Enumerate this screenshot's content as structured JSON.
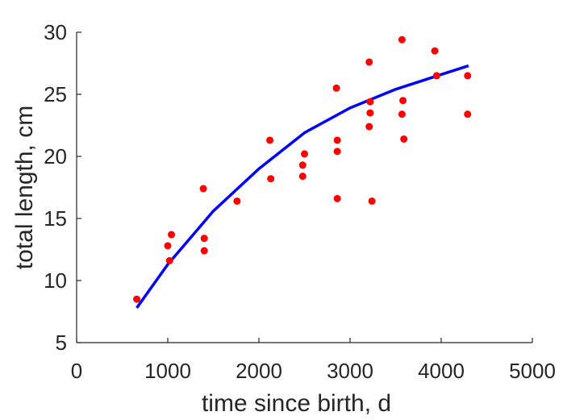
{
  "chart_data": {
    "type": "scatter",
    "title": "",
    "xlabel": "time since birth, d",
    "ylabel": "total length, cm",
    "xlim": [
      0,
      5000
    ],
    "ylim": [
      5,
      30
    ],
    "xticks": [
      "0",
      "1000",
      "2000",
      "3000",
      "4000",
      "5000"
    ],
    "yticks": [
      "5",
      "10",
      "15",
      "20",
      "25",
      "30"
    ],
    "grid": false,
    "legend": "none",
    "series": [
      {
        "type": "scatter",
        "color": "#ff0000",
        "points": [
          {
            "x": 660,
            "y": 8.5
          },
          {
            "x": 1000,
            "y": 12.8
          },
          {
            "x": 1020,
            "y": 11.6
          },
          {
            "x": 1040,
            "y": 13.7
          },
          {
            "x": 1390,
            "y": 17.4
          },
          {
            "x": 1400,
            "y": 13.4
          },
          {
            "x": 1400,
            "y": 12.4
          },
          {
            "x": 1760,
            "y": 16.4
          },
          {
            "x": 2120,
            "y": 21.3
          },
          {
            "x": 2130,
            "y": 18.2
          },
          {
            "x": 2480,
            "y": 19.3
          },
          {
            "x": 2480,
            "y": 18.4
          },
          {
            "x": 2500,
            "y": 20.2
          },
          {
            "x": 2850,
            "y": 25.5
          },
          {
            "x": 2860,
            "y": 21.3
          },
          {
            "x": 2860,
            "y": 20.4
          },
          {
            "x": 2860,
            "y": 16.6
          },
          {
            "x": 3210,
            "y": 27.6
          },
          {
            "x": 3220,
            "y": 24.4
          },
          {
            "x": 3220,
            "y": 23.5
          },
          {
            "x": 3210,
            "y": 22.4
          },
          {
            "x": 3240,
            "y": 16.4
          },
          {
            "x": 3570,
            "y": 29.4
          },
          {
            "x": 3580,
            "y": 24.5
          },
          {
            "x": 3570,
            "y": 23.4
          },
          {
            "x": 3590,
            "y": 21.4
          },
          {
            "x": 3930,
            "y": 28.5
          },
          {
            "x": 3950,
            "y": 26.5
          },
          {
            "x": 4290,
            "y": 26.5
          },
          {
            "x": 4290,
            "y": 23.4
          }
        ]
      },
      {
        "type": "line",
        "color": "#0000ff",
        "points": [
          {
            "x": 660,
            "y": 7.8
          },
          {
            "x": 1000,
            "y": 11.3
          },
          {
            "x": 1500,
            "y": 15.6
          },
          {
            "x": 2000,
            "y": 19.0
          },
          {
            "x": 2500,
            "y": 21.9
          },
          {
            "x": 3000,
            "y": 23.9
          },
          {
            "x": 3500,
            "y": 25.4
          },
          {
            "x": 4000,
            "y": 26.6
          },
          {
            "x": 4300,
            "y": 27.3
          }
        ]
      }
    ]
  }
}
